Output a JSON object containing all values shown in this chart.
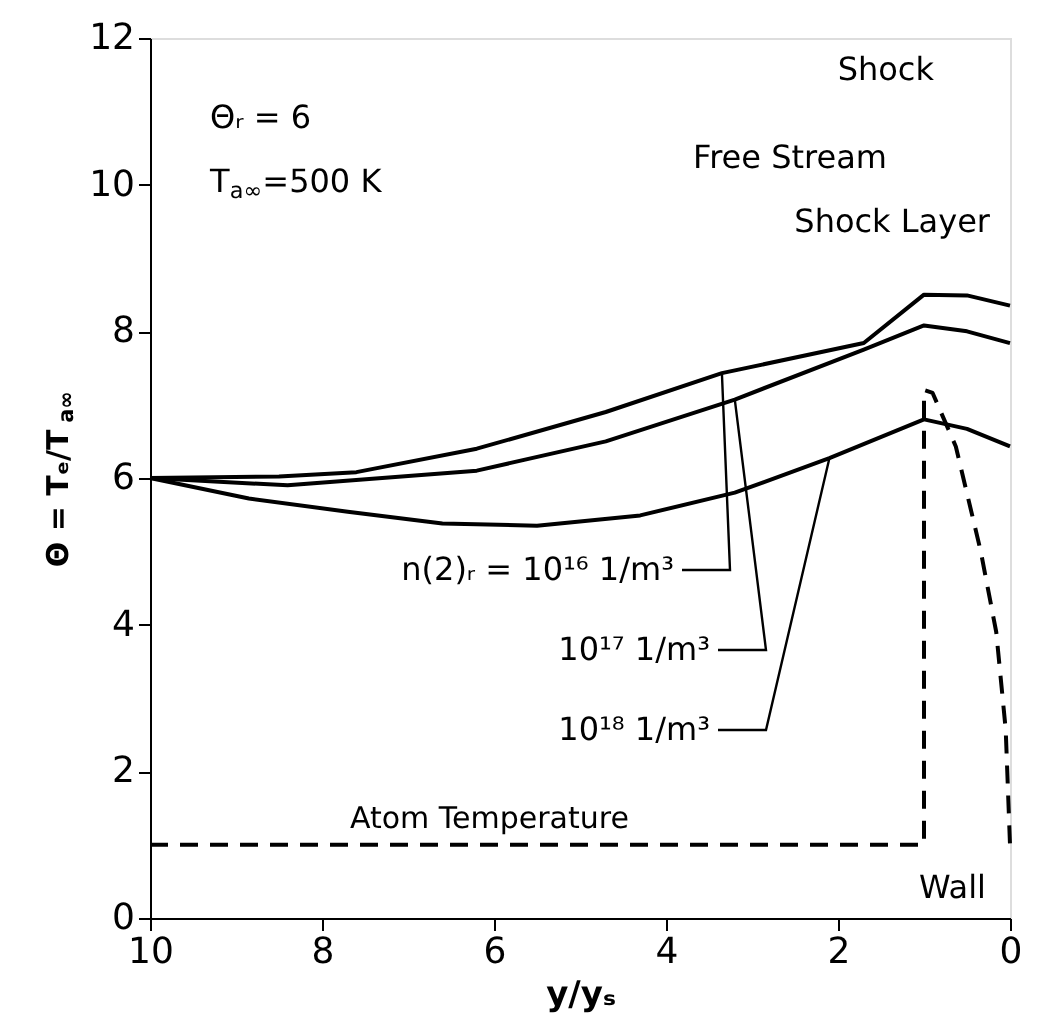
{
  "chart_data": {
    "type": "line",
    "xlabel": "y/yₛ",
    "ylabel": "Θ = Tₑ/T$_{a∞}$",
    "xlim": [
      10,
      0
    ],
    "xticks": [
      10,
      8,
      6,
      4,
      2,
      0
    ],
    "ylim": [
      0,
      12
    ],
    "yticks": [
      0,
      2,
      4,
      6,
      8,
      10,
      12
    ],
    "grid": false,
    "marker": "none",
    "annotations": [
      "Θᵣ = 6",
      "T$_{a∞}$=500 K",
      "Shock",
      "Free Stream",
      "Shock Layer",
      "Wall"
    ],
    "series": [
      {
        "name": "n(2)ᵣ = 10¹⁶ 1/m³",
        "color": "#000000",
        "line_style": "solid",
        "x": [
          10,
          8.5,
          7.6,
          6.2,
          4.7,
          3.35,
          1.7,
          1,
          0.5,
          0
        ],
        "values": [
          6,
          6.02,
          6.08,
          6.4,
          6.9,
          7.43,
          7.84,
          8.5,
          8.49,
          8.35
        ]
      },
      {
        "name": "10¹⁷ 1/m³",
        "color": "#000000",
        "line_style": "solid",
        "x": [
          10,
          8.4,
          6.2,
          4.7,
          3.2,
          1.7,
          1,
          0.5,
          0
        ],
        "values": [
          6,
          5.9,
          6.1,
          6.5,
          7.07,
          7.75,
          8.08,
          8.0,
          7.84
        ]
      },
      {
        "name": "10¹⁸ 1/m³",
        "color": "#000000",
        "line_style": "solid",
        "x": [
          10,
          8.85,
          7.7,
          6.6,
          5.5,
          4.3,
          3.2,
          2.1,
          1,
          0.5,
          0
        ],
        "values": [
          6,
          5.72,
          5.54,
          5.38,
          5.35,
          5.49,
          5.8,
          6.27,
          6.8,
          6.67,
          6.43
        ]
      },
      {
        "name": "Atom Temperature",
        "color": "#000000",
        "line_style": "dashed",
        "x": [
          10,
          1,
          1,
          0.9,
          0.63,
          0.34,
          0.16,
          0.05,
          0
        ],
        "values": [
          1,
          1,
          7.2,
          7.16,
          6.43,
          5.0,
          3.9,
          2.57,
          1
        ]
      }
    ]
  }
}
